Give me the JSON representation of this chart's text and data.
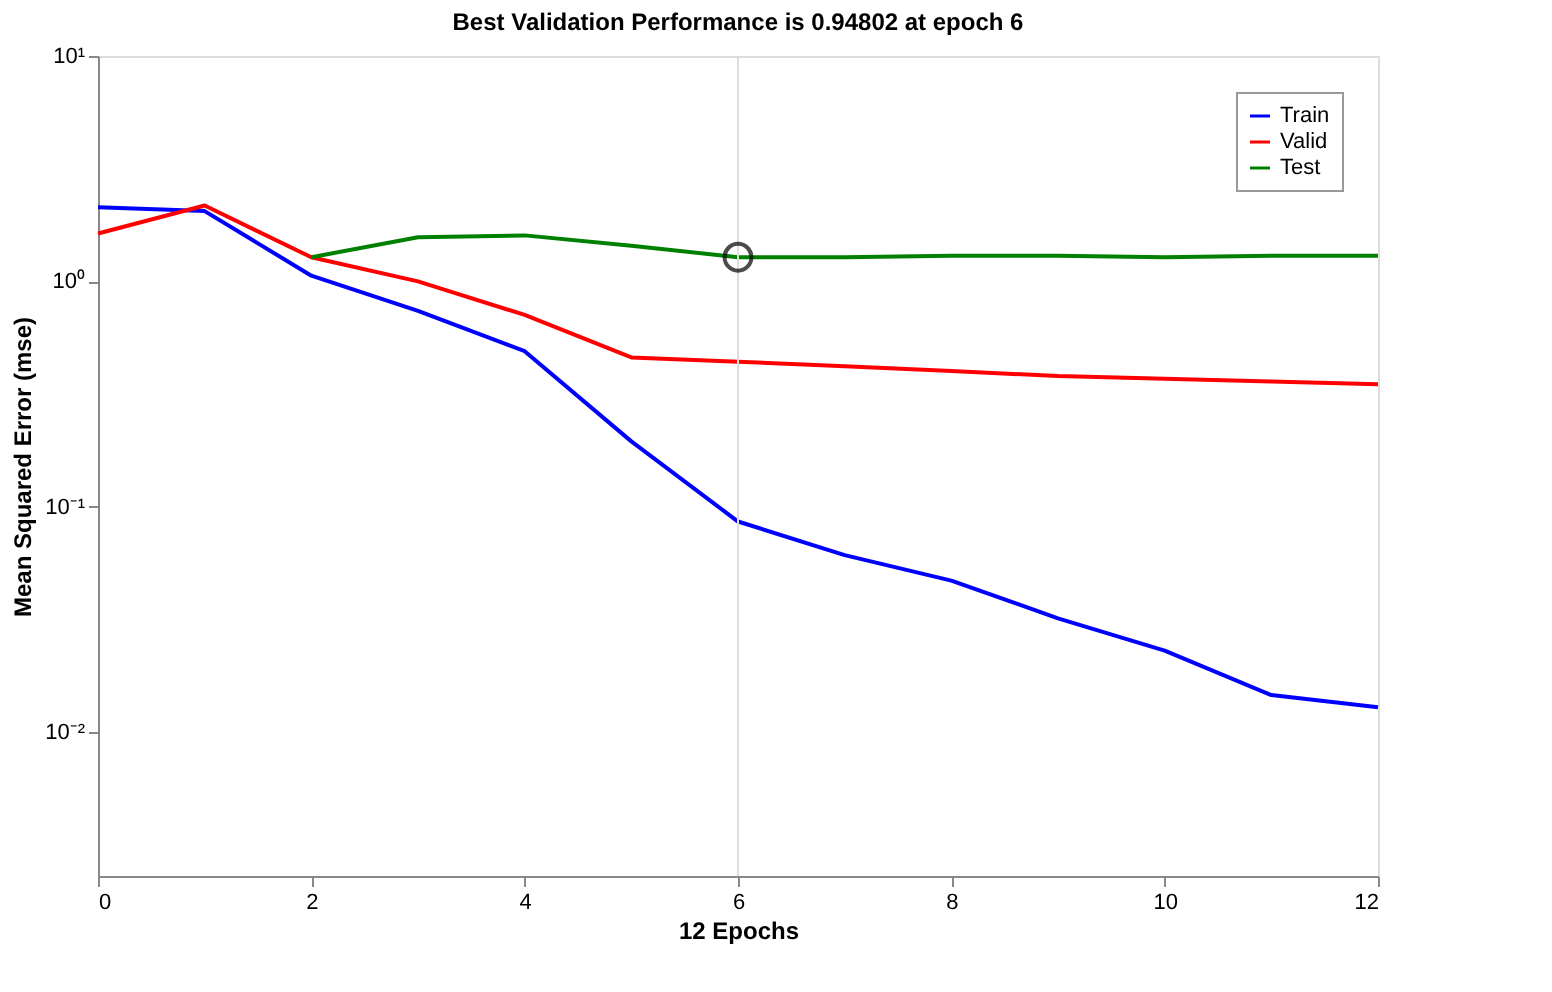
{
  "chart_data": {
    "type": "line",
    "title": "Best Validation Performance is 0.94802 at epoch 6",
    "xlabel": "12 Epochs",
    "ylabel": "Mean Squared Error (mse)",
    "x": [
      0,
      1,
      2,
      3,
      4,
      5,
      6,
      7,
      8,
      9,
      10,
      11,
      12
    ],
    "series": [
      {
        "name": "Train",
        "color": "#0000ff",
        "values": [
          2.13,
          2.05,
          1.06,
          0.74,
          0.49,
          0.195,
          0.086,
          0.061,
          0.047,
          0.032,
          0.023,
          0.0146,
          0.0129
        ]
      },
      {
        "name": "Valid",
        "color": "#ff0000",
        "values": [
          1.63,
          2.17,
          1.28,
          1.0,
          0.71,
          0.46,
          0.44,
          0.42,
          0.4,
          0.38,
          0.37,
          0.36,
          0.35
        ]
      },
      {
        "name": "Test",
        "color": "#008000",
        "values": [
          null,
          null,
          1.28,
          1.57,
          1.6,
          1.44,
          1.28,
          1.28,
          1.3,
          1.3,
          1.28,
          1.3,
          1.3
        ]
      },
      {
        "type": "scatter",
        "color": "#000000",
        "marker": "circle",
        "x": [
          6
        ],
        "values": [
          1.28
        ]
      }
    ],
    "xlim": [
      0,
      12
    ],
    "xticks": [
      0,
      2,
      4,
      6,
      8,
      10,
      12
    ],
    "ylim": [
      0.0023,
      10
    ],
    "yticks": [
      {
        "value": 10,
        "label": "10¹"
      },
      {
        "value": 1,
        "label": "10⁰"
      },
      {
        "value": 0.1,
        "label": "10⁻¹"
      },
      {
        "value": 0.01,
        "label": "10⁻²"
      }
    ],
    "log": "y",
    "grid": false,
    "legend": "top right",
    "marker": "none",
    "line_style": "solid",
    "ref_lines": [
      {
        "axis": "x",
        "value": 6,
        "color": "#dddddd"
      }
    ]
  }
}
